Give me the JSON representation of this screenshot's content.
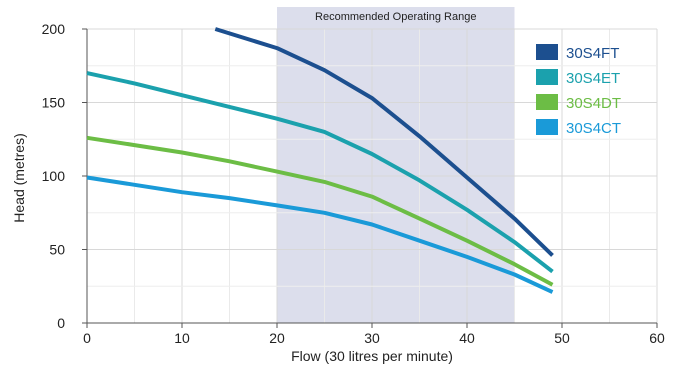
{
  "chart_data": {
    "type": "line",
    "title": "",
    "xlabel": "Flow (30 litres per minute)",
    "ylabel": "Head (metres)",
    "xlim": [
      0,
      60
    ],
    "ylim": [
      0,
      200
    ],
    "x_ticks": [
      0,
      10,
      20,
      30,
      40,
      50,
      60
    ],
    "y_ticks": [
      0,
      50,
      100,
      150,
      200
    ],
    "grid": true,
    "legend_position": "top-right",
    "highlight_band": {
      "label": "Recommended Operating Range",
      "x_range": [
        20,
        45
      ],
      "color": "#dcdeec"
    },
    "series": [
      {
        "name": "30S4FT",
        "color": "#1c4f8f",
        "points": [
          [
            13.5,
            200
          ],
          [
            20,
            187
          ],
          [
            25,
            172
          ],
          [
            30,
            153
          ],
          [
            35,
            127
          ],
          [
            40,
            99
          ],
          [
            45,
            71
          ],
          [
            49,
            46
          ]
        ]
      },
      {
        "name": "30S4ET",
        "color": "#1ba1ad",
        "points": [
          [
            0,
            170
          ],
          [
            5,
            163
          ],
          [
            10,
            155
          ],
          [
            15,
            147
          ],
          [
            20,
            139
          ],
          [
            25,
            130
          ],
          [
            30,
            115
          ],
          [
            35,
            97
          ],
          [
            40,
            77
          ],
          [
            45,
            55
          ],
          [
            49,
            35
          ]
        ]
      },
      {
        "name": "30S4DT",
        "color": "#6cbd45",
        "points": [
          [
            0,
            126
          ],
          [
            5,
            121
          ],
          [
            10,
            116
          ],
          [
            15,
            110
          ],
          [
            20,
            103
          ],
          [
            25,
            96
          ],
          [
            30,
            86
          ],
          [
            35,
            71
          ],
          [
            40,
            56
          ],
          [
            45,
            40
          ],
          [
            49,
            26
          ]
        ]
      },
      {
        "name": "30S4CT",
        "color": "#1a9ad8",
        "points": [
          [
            0,
            99
          ],
          [
            5,
            94
          ],
          [
            10,
            89
          ],
          [
            15,
            85
          ],
          [
            20,
            80
          ],
          [
            25,
            75
          ],
          [
            30,
            67
          ],
          [
            35,
            56
          ],
          [
            40,
            45
          ],
          [
            45,
            33
          ],
          [
            49,
            21
          ]
        ]
      }
    ]
  }
}
